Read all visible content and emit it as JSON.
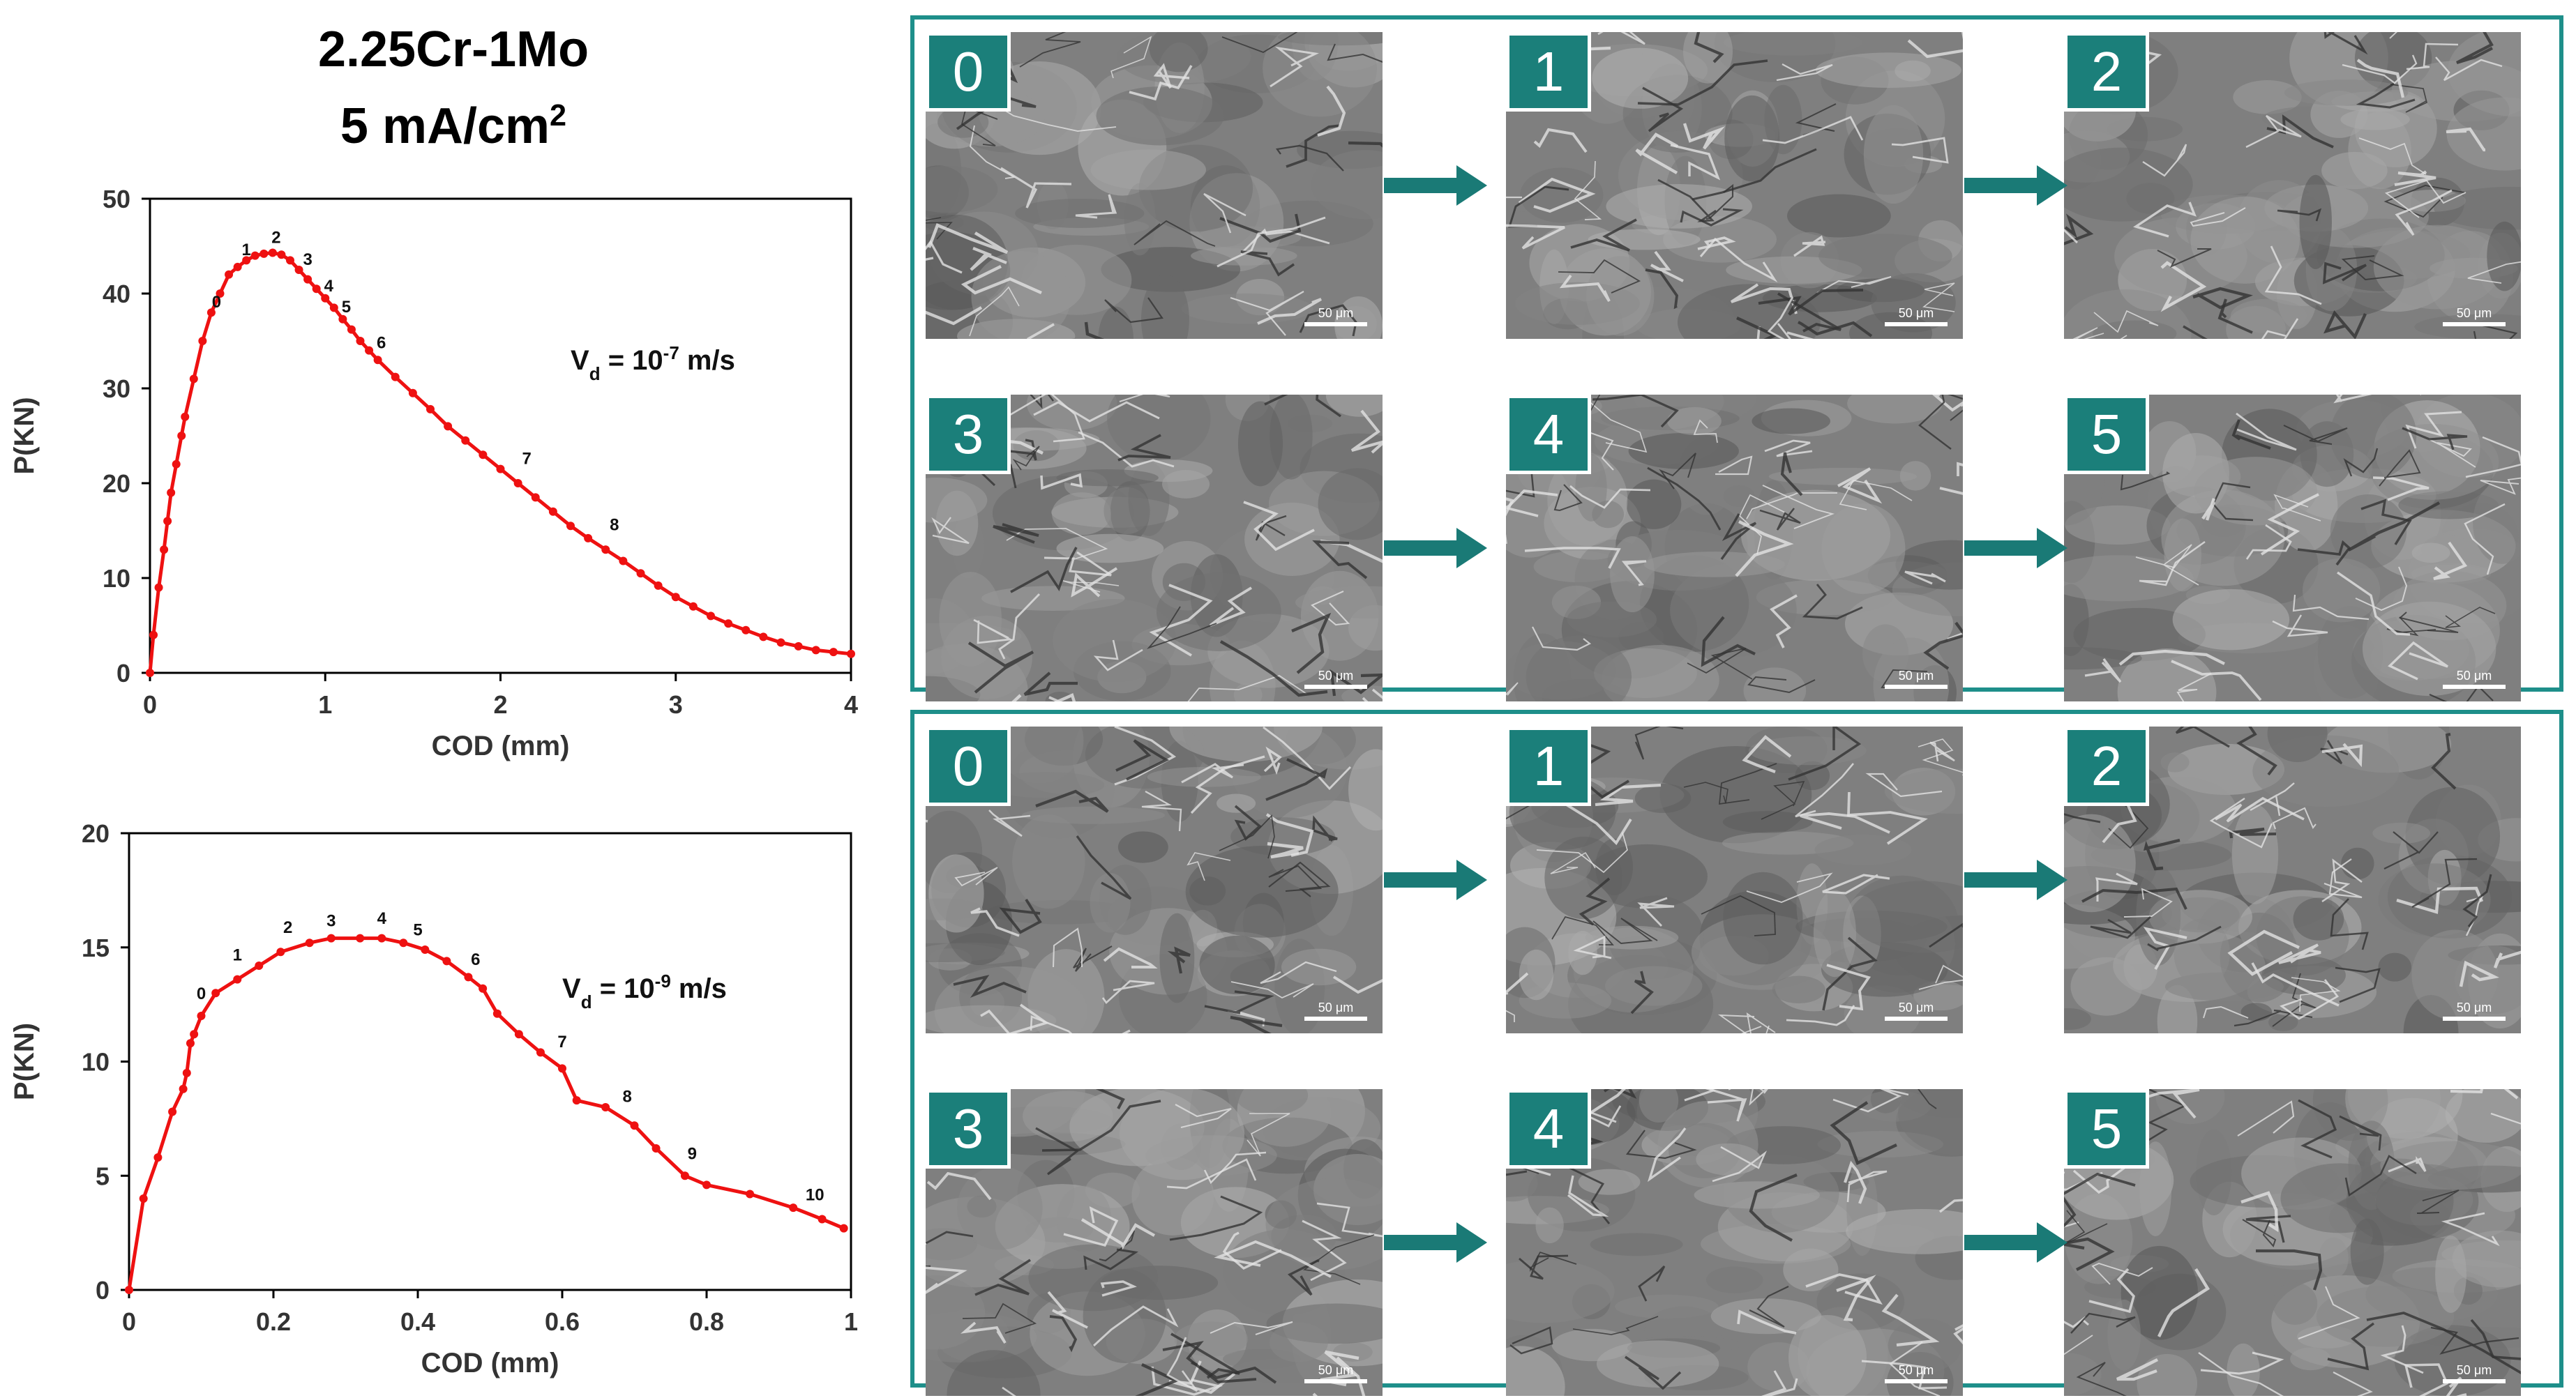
{
  "title": {
    "material": "2.25Cr-1Mo",
    "current_base": "5 mA/cm",
    "current_exp": "2"
  },
  "chart_data": [
    {
      "type": "line",
      "xlabel": "COD (mm)",
      "ylabel": "P(KN)",
      "xlim": [
        0,
        4
      ],
      "ylim": [
        0,
        50
      ],
      "xticks": [
        "0",
        "1",
        "2",
        "3",
        "4"
      ],
      "yticks": [
        "0",
        "10",
        "20",
        "30",
        "40",
        "50"
      ],
      "annotation_base": "V",
      "annotation_sub": "d",
      "annotation_mid": " = 10",
      "annotation_exp": "-7",
      "annotation_unit": " m/s",
      "color": "#ee1111",
      "grid": false,
      "series": [
        {
          "x": [
            0,
            0.02,
            0.05,
            0.08,
            0.1,
            0.12,
            0.15,
            0.18,
            0.2,
            0.25,
            0.3,
            0.35,
            0.4,
            0.45,
            0.5,
            0.55,
            0.6,
            0.65,
            0.7,
            0.75,
            0.8,
            0.85,
            0.9,
            0.95,
            1.0,
            1.05,
            1.1,
            1.15,
            1.2,
            1.25,
            1.3,
            1.4,
            1.5,
            1.6,
            1.7,
            1.8,
            1.9,
            2.0,
            2.1,
            2.2,
            2.3,
            2.4,
            2.5,
            2.6,
            2.7,
            2.8,
            2.9,
            3.0,
            3.1,
            3.2,
            3.3,
            3.4,
            3.5,
            3.6,
            3.7,
            3.8,
            3.9,
            4.0
          ],
          "y": [
            0,
            4,
            9,
            13,
            16,
            19,
            22,
            25,
            27,
            31,
            35,
            38,
            40,
            42,
            42.8,
            43.5,
            44,
            44.2,
            44.3,
            44.1,
            43.5,
            42.5,
            41.5,
            40.5,
            39.5,
            38.5,
            37.3,
            36.2,
            35,
            34,
            33,
            31.2,
            29.5,
            27.8,
            26,
            24.5,
            23,
            21.5,
            20,
            18.5,
            17,
            15.5,
            14.2,
            13,
            11.8,
            10.5,
            9.2,
            8,
            7,
            6,
            5.2,
            4.5,
            3.8,
            3.2,
            2.8,
            2.4,
            2.2,
            2
          ]
        }
      ],
      "point_labels": [
        {
          "label": "0",
          "x": 0.38,
          "y": 37.5
        },
        {
          "label": "1",
          "x": 0.55,
          "y": 43
        },
        {
          "label": "2",
          "x": 0.72,
          "y": 44.3
        },
        {
          "label": "3",
          "x": 0.9,
          "y": 42
        },
        {
          "label": "4",
          "x": 1.02,
          "y": 39.2
        },
        {
          "label": "5",
          "x": 1.12,
          "y": 37
        },
        {
          "label": "6",
          "x": 1.32,
          "y": 33.2
        },
        {
          "label": "7",
          "x": 2.15,
          "y": 21
        },
        {
          "label": "8",
          "x": 2.65,
          "y": 14
        }
      ]
    },
    {
      "type": "line",
      "xlabel": "COD (mm)",
      "ylabel": "P(KN)",
      "xlim": [
        0,
        1
      ],
      "ylim": [
        0,
        20
      ],
      "xticks": [
        "0",
        "0.2",
        "0.4",
        "0.6",
        "0.8",
        "1"
      ],
      "yticks": [
        "0",
        "5",
        "10",
        "15",
        "20"
      ],
      "annotation_base": "V",
      "annotation_sub": "d",
      "annotation_mid": " = 10",
      "annotation_exp": "-9",
      "annotation_unit": " m/s",
      "color": "#ee1111",
      "grid": false,
      "series": [
        {
          "x": [
            0,
            0.02,
            0.04,
            0.06,
            0.075,
            0.08,
            0.085,
            0.09,
            0.1,
            0.12,
            0.15,
            0.18,
            0.21,
            0.25,
            0.28,
            0.32,
            0.35,
            0.38,
            0.41,
            0.44,
            0.47,
            0.49,
            0.51,
            0.54,
            0.57,
            0.6,
            0.62,
            0.66,
            0.7,
            0.73,
            0.77,
            0.8,
            0.86,
            0.92,
            0.96,
            0.99
          ],
          "y": [
            0,
            4,
            5.8,
            7.8,
            8.8,
            9.5,
            10.8,
            11.2,
            12,
            13,
            13.6,
            14.2,
            14.8,
            15.2,
            15.4,
            15.4,
            15.4,
            15.2,
            14.9,
            14.4,
            13.7,
            13.2,
            12.1,
            11.2,
            10.4,
            9.7,
            8.3,
            8.0,
            7.2,
            6.2,
            5.0,
            4.6,
            4.2,
            3.6,
            3.1,
            2.7
          ]
        }
      ],
      "point_labels": [
        {
          "label": "0",
          "x": 0.1,
          "y": 12.3
        },
        {
          "label": "1",
          "x": 0.15,
          "y": 14
        },
        {
          "label": "2",
          "x": 0.22,
          "y": 15.2
        },
        {
          "label": "3",
          "x": 0.28,
          "y": 15.5
        },
        {
          "label": "4",
          "x": 0.35,
          "y": 15.6
        },
        {
          "label": "5",
          "x": 0.4,
          "y": 15.1
        },
        {
          "label": "6",
          "x": 0.48,
          "y": 13.8
        },
        {
          "label": "7",
          "x": 0.6,
          "y": 10.2
        },
        {
          "label": "8",
          "x": 0.69,
          "y": 7.8
        },
        {
          "label": "9",
          "x": 0.78,
          "y": 5.3
        },
        {
          "label": "10",
          "x": 0.95,
          "y": 3.5
        }
      ]
    }
  ],
  "panels": [
    {
      "images": [
        {
          "label": "0",
          "scale": "50 μm"
        },
        {
          "label": "1",
          "scale": "50 μm"
        },
        {
          "label": "2",
          "scale": "50 μm"
        },
        {
          "label": "3",
          "scale": "50 μm"
        },
        {
          "label": "4",
          "scale": "50 μm"
        },
        {
          "label": "5",
          "scale": "50 μm"
        }
      ]
    },
    {
      "images": [
        {
          "label": "0",
          "scale": "50 μm"
        },
        {
          "label": "1",
          "scale": "50 μm"
        },
        {
          "label": "2",
          "scale": "50 μm"
        },
        {
          "label": "3",
          "scale": "50 μm"
        },
        {
          "label": "4",
          "scale": "50 μm"
        },
        {
          "label": "5",
          "scale": "50 μm"
        }
      ]
    }
  ],
  "colors": {
    "panel_border": "#1e8f8a",
    "badge": "#1b7f7a",
    "arrow": "#1a7a76",
    "curve": "#ee1111"
  }
}
